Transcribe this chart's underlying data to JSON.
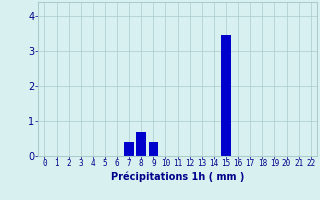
{
  "hours": [
    0,
    1,
    2,
    3,
    4,
    5,
    6,
    7,
    8,
    9,
    10,
    11,
    12,
    13,
    14,
    15,
    16,
    17,
    18,
    19,
    20,
    21,
    22
  ],
  "values": [
    0,
    0,
    0,
    0,
    0,
    0,
    0,
    0.4,
    0.7,
    0.4,
    0,
    0,
    0,
    0,
    0,
    3.45,
    0,
    0,
    0,
    0,
    0,
    0,
    0
  ],
  "bar_color": "#0000cc",
  "background_color": "#d9f0f0",
  "grid_color": "#aacccc",
  "xlabel": "Précipitations 1h ( mm )",
  "xlabel_color": "#00008b",
  "tick_color": "#00008b",
  "ylim": [
    0,
    4.4
  ],
  "yticks": [
    0,
    1,
    2,
    3,
    4
  ],
  "xlim": [
    -0.5,
    22.5
  ],
  "figsize": [
    3.2,
    2.0
  ],
  "dpi": 100
}
